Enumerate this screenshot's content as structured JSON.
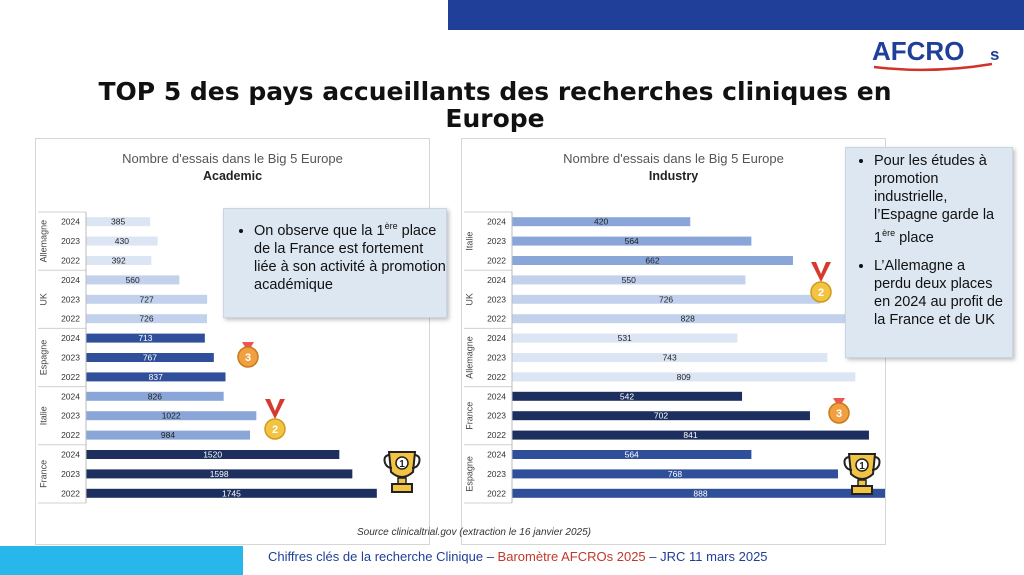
{
  "header": {
    "logo_text": "AFCRO",
    "logo_suffix": "s",
    "title": "TOP 5 des pays accueillants des recherches cliniques en Europe"
  },
  "chart_data": [
    {
      "type": "bar",
      "orientation": "horizontal",
      "title": "Nombre d'essais dans le Big 5 Europe",
      "subtitle": "Academic",
      "groups": [
        {
          "country": "Allemagne",
          "years": [
            "2024",
            "2023",
            "2022"
          ],
          "values": [
            385,
            430,
            392
          ],
          "color": "#dbe5f3"
        },
        {
          "country": "UK",
          "years": [
            "2024",
            "2023",
            "2022"
          ],
          "values": [
            560,
            727,
            726
          ],
          "color": "#c2d2ec"
        },
        {
          "country": "Espagne",
          "years": [
            "2024",
            "2023",
            "2022"
          ],
          "values": [
            713,
            767,
            837
          ],
          "color": "#2f4f9a"
        },
        {
          "country": "Italie",
          "years": [
            "2024",
            "2023",
            "2022"
          ],
          "values": [
            826,
            1022,
            984
          ],
          "color": "#8aa5d8"
        },
        {
          "country": "France",
          "years": [
            "2024",
            "2023",
            "2022"
          ],
          "values": [
            1520,
            1598,
            1745
          ],
          "color": "#1c2f5e"
        }
      ],
      "xlim": [
        0,
        1800
      ],
      "grid": false,
      "legend": "none"
    },
    {
      "type": "bar",
      "orientation": "horizontal",
      "title": "Nombre d'essais dans le Big 5 Europe",
      "subtitle": "Industry",
      "groups": [
        {
          "country": "Italie",
          "years": [
            "2024",
            "2023",
            "2022"
          ],
          "values": [
            420,
            564,
            662
          ],
          "color": "#8aa5d8"
        },
        {
          "country": "UK",
          "years": [
            "2024",
            "2023",
            "2022"
          ],
          "values": [
            550,
            726,
            828
          ],
          "color": "#c2d2ec"
        },
        {
          "country": "Allemagne",
          "years": [
            "2024",
            "2023",
            "2022"
          ],
          "values": [
            531,
            743,
            809
          ],
          "color": "#dbe5f3"
        },
        {
          "country": "France",
          "years": [
            "2024",
            "2023",
            "2022"
          ],
          "values": [
            542,
            702,
            841
          ],
          "color": "#1c2f5e"
        },
        {
          "country": "Espagne",
          "years": [
            "2024",
            "2023",
            "2022"
          ],
          "values": [
            564,
            768,
            888
          ],
          "color": "#2f4f9a"
        }
      ],
      "xlim": [
        0,
        900
      ],
      "grid": false,
      "legend": "none"
    }
  ],
  "callouts": {
    "academic_text_pre": "On observe que la 1",
    "academic_sup": "ère",
    "academic_text_post": " place de la France est fortement liée à son activité à promotion académique",
    "industry_item1_pre": "Pour les études à promotion industrielle, l’Espagne garde la 1",
    "industry_item1_sup": "ère",
    "industry_item1_post": " place",
    "industry_item2": "L’Allemagne a perdu deux places en 2024 au profit de la France et de UK"
  },
  "source": "Source clinicaltrial.gov (extraction le 16 janvier 2025)",
  "footer": {
    "part1": "Chiffres clés de la recherche Clinique – ",
    "part2": "Baromètre AFCROs 2025",
    "part3": " – JRC 11 mars 2025"
  },
  "colors": {
    "brand_blue": "#1f3f99",
    "brand_red": "#d0332a",
    "footer_cyan": "#27b7ea"
  },
  "icons": [
    "trophy-icon",
    "medal-2-icon",
    "medal-3-icon"
  ]
}
